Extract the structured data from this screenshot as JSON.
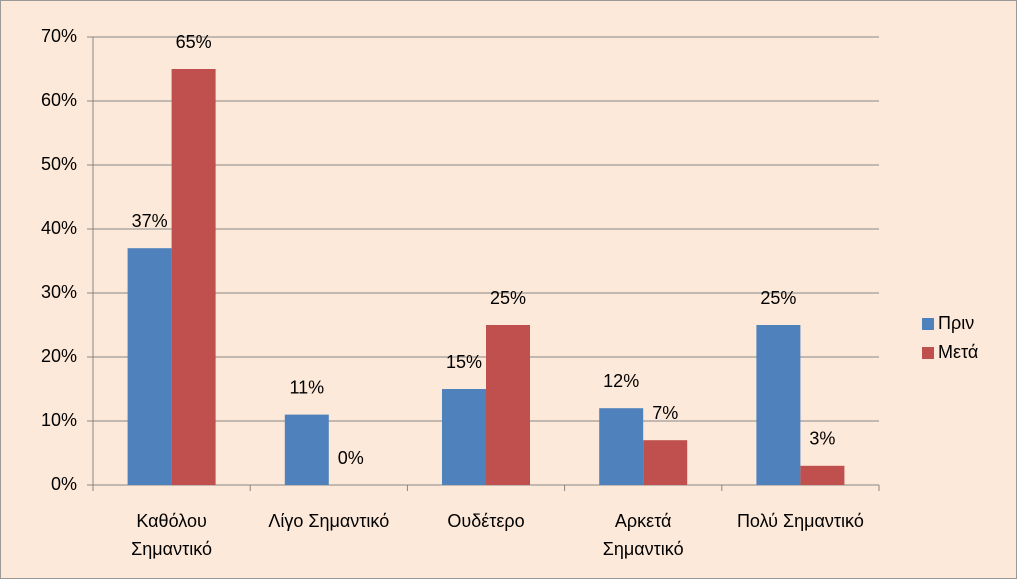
{
  "chart_data": {
    "type": "bar",
    "categories": [
      "Καθόλου Σημαντικό",
      "Λίγο Σημαντικό",
      "Ουδέτερο",
      "Αρκετά Σημαντικό",
      "Πολύ Σημαντικό"
    ],
    "series": [
      {
        "name": "Πριν",
        "color": "#4f81bd",
        "values": [
          37,
          11,
          15,
          12,
          25
        ],
        "value_labels": [
          "37%",
          "11%",
          "15%",
          "12%",
          "25%"
        ]
      },
      {
        "name": "Μετά",
        "color": "#c0504d",
        "values": [
          65,
          0,
          25,
          7,
          3
        ],
        "value_labels": [
          "65%",
          "0%",
          "25%",
          "7%",
          "3%"
        ]
      }
    ],
    "ylim": [
      0,
      70
    ],
    "yticks": [
      {
        "value": 0,
        "label": "0%"
      },
      {
        "value": 10,
        "label": "10%"
      },
      {
        "value": 20,
        "label": "20%"
      },
      {
        "value": 30,
        "label": "30%"
      },
      {
        "value": 40,
        "label": "40%"
      },
      {
        "value": 50,
        "label": "50%"
      },
      {
        "value": 60,
        "label": "60%"
      },
      {
        "value": 70,
        "label": "70%"
      }
    ],
    "grid": true,
    "legend": "right"
  }
}
